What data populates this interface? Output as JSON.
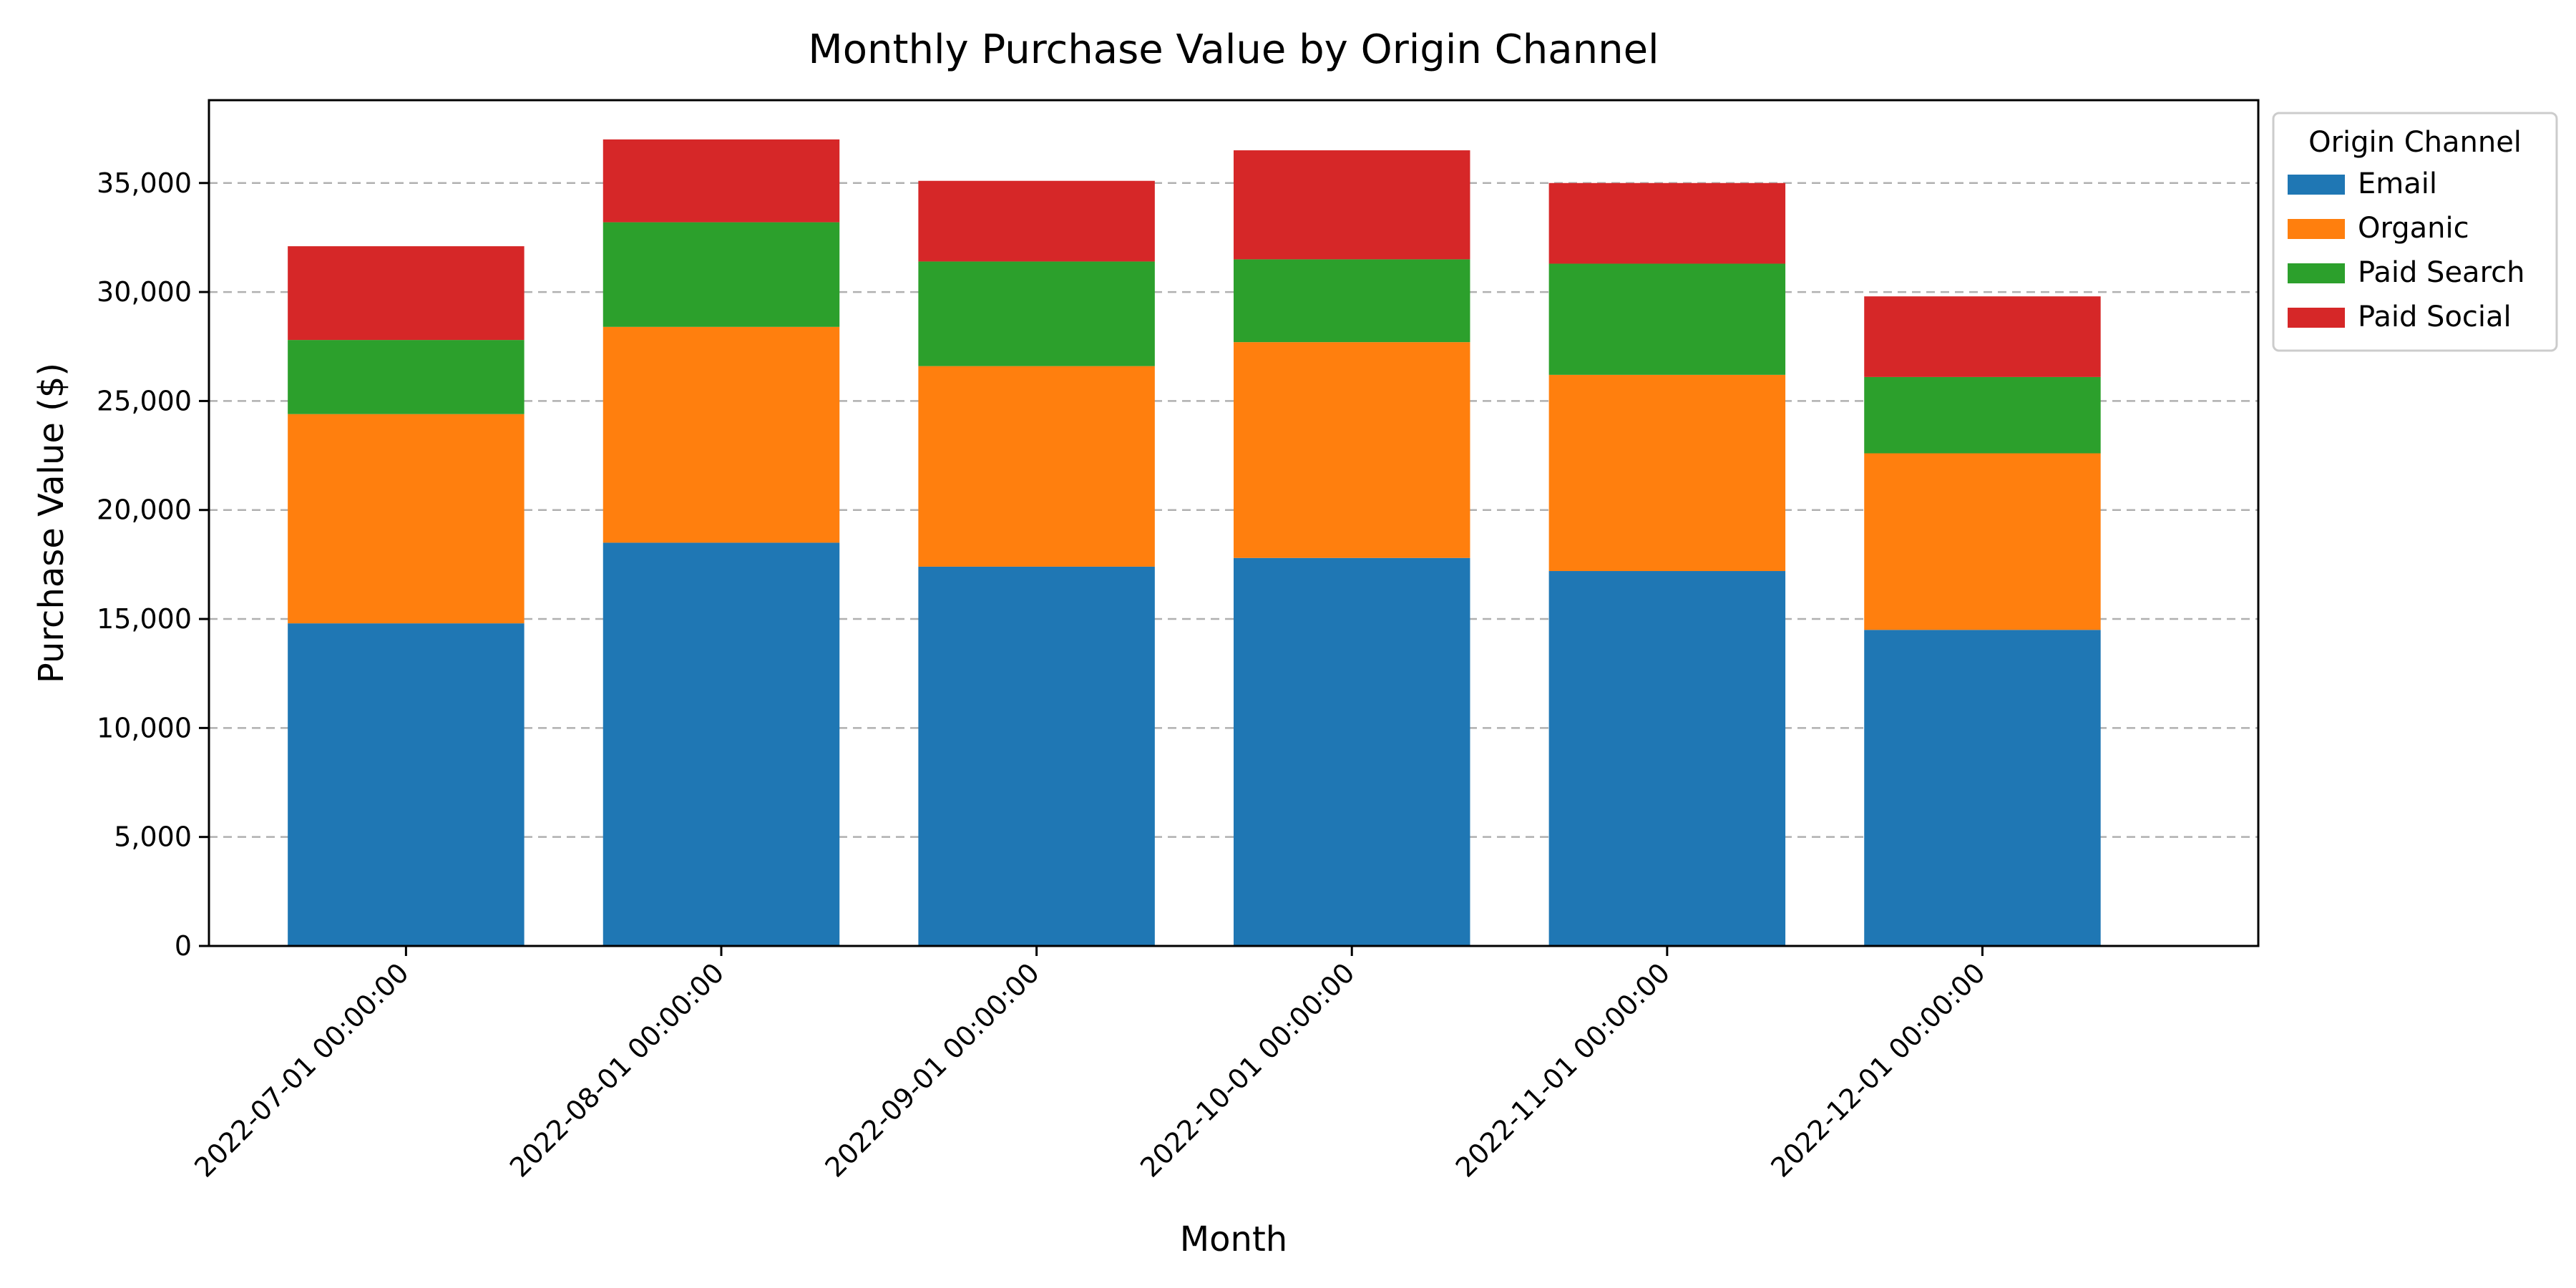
{
  "chart_data": {
    "type": "bar",
    "stacked": true,
    "title": "Monthly Purchase Value by Origin Channel",
    "xlabel": "Month",
    "ylabel": "Purchase Value ($)",
    "categories": [
      "2022-07-01 00:00:00",
      "2022-08-01 00:00:00",
      "2022-09-01 00:00:00",
      "2022-10-01 00:00:00",
      "2022-11-01 00:00:00",
      "2022-12-01 00:00:00"
    ],
    "series": [
      {
        "name": "Email",
        "color": "#1f77b4",
        "values": [
          14800,
          18500,
          17400,
          17800,
          17200,
          14500
        ]
      },
      {
        "name": "Organic",
        "color": "#ff7f0e",
        "values": [
          9600,
          9900,
          9200,
          9900,
          9000,
          8100
        ]
      },
      {
        "name": "Paid Search",
        "color": "#2ca02c",
        "values": [
          3400,
          4800,
          4800,
          3800,
          5100,
          3500
        ]
      },
      {
        "name": "Paid Social",
        "color": "#d62728",
        "values": [
          4300,
          3800,
          3700,
          5000,
          3700,
          3700
        ]
      }
    ],
    "ylim": [
      0,
      38800
    ],
    "yticks": [
      0,
      5000,
      10000,
      15000,
      20000,
      25000,
      30000,
      35000
    ],
    "ytick_labels": [
      "0",
      "5,000",
      "10,000",
      "15,000",
      "20,000",
      "25,000",
      "30,000",
      "35,000"
    ],
    "grid": {
      "y": true,
      "style": "dashed"
    },
    "legend": {
      "title": "Origin Channel",
      "placement": "outside-top-right"
    }
  }
}
